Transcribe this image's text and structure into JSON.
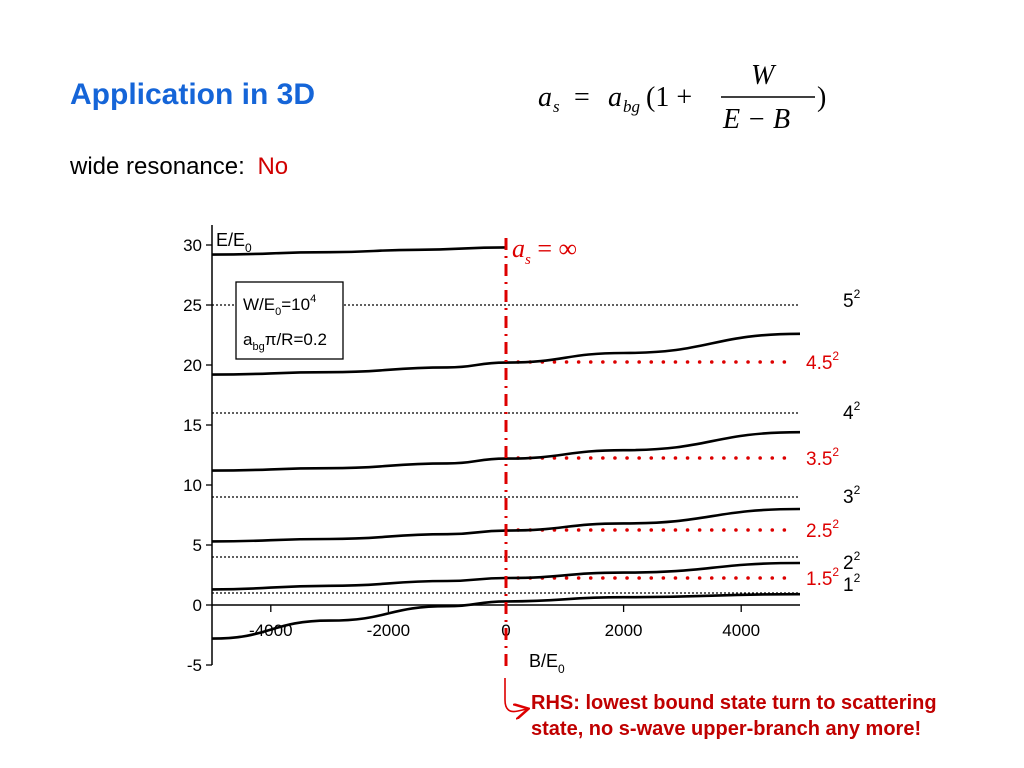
{
  "slide": {
    "title": "Application in 3D",
    "subtitle_label": "wide resonance:",
    "subtitle_value": "No",
    "note_line1": "RHS: lowest bound state turn to scattering",
    "note_line2": "state, no s-wave upper-branch any more!"
  },
  "formula": {
    "lhs": "a",
    "lhs_sub": "s",
    "eq": "=",
    "a": "a",
    "a_sub": "bg",
    "open": "(1 +",
    "num": "W",
    "den": "E − B",
    "close": ")"
  },
  "chart_data": {
    "type": "line",
    "ylabel": "E/E",
    "ylabel_sub": "0",
    "xlabel": "B/E",
    "xlabel_sub": "0",
    "xlim": [
      -5000,
      5000
    ],
    "ylim": [
      -5,
      31
    ],
    "xticks": [
      -4000,
      -2000,
      0,
      2000,
      4000
    ],
    "yticks": [
      -5,
      0,
      5,
      10,
      15,
      20,
      25,
      30
    ],
    "legend": {
      "line1": "W/E",
      "line1_sub": "0",
      "line1_rest": "=10",
      "line1_sup": "4",
      "line2": "a",
      "line2_sub": "bg",
      "line2_rest": "π/R=0.2"
    },
    "infinity_label": {
      "a": "a",
      "sub": "s",
      "rest": " = ∞"
    },
    "series": [
      {
        "points": [
          [
            -5000,
            -2.8
          ],
          [
            -3000,
            -1.3
          ],
          [
            -1000,
            -0.1
          ],
          [
            0,
            0.3
          ],
          [
            2000,
            0.65
          ],
          [
            5000,
            0.9
          ]
        ]
      },
      {
        "points": [
          [
            -5000,
            1.3
          ],
          [
            -3000,
            1.6
          ],
          [
            -1000,
            2.0
          ],
          [
            0,
            2.25
          ],
          [
            2000,
            2.7
          ],
          [
            5000,
            3.5
          ]
        ]
      },
      {
        "points": [
          [
            -5000,
            5.3
          ],
          [
            -3000,
            5.5
          ],
          [
            -1000,
            5.9
          ],
          [
            0,
            6.2
          ],
          [
            2000,
            6.8
          ],
          [
            5000,
            8.0
          ]
        ]
      },
      {
        "points": [
          [
            -5000,
            11.2
          ],
          [
            -3000,
            11.4
          ],
          [
            -1000,
            11.8
          ],
          [
            0,
            12.2
          ],
          [
            2000,
            12.9
          ],
          [
            5000,
            14.4
          ]
        ]
      },
      {
        "points": [
          [
            -5000,
            19.2
          ],
          [
            -3000,
            19.4
          ],
          [
            -1000,
            19.8
          ],
          [
            0,
            20.2
          ],
          [
            2000,
            21.0
          ],
          [
            5000,
            22.6
          ]
        ]
      },
      {
        "points": [
          [
            -5000,
            29.2
          ],
          [
            -3000,
            29.4
          ],
          [
            -1500,
            29.6
          ],
          [
            0,
            29.8
          ]
        ]
      }
    ],
    "integer_levels": [
      {
        "y": 1,
        "label": "1",
        "sup": "2"
      },
      {
        "y": 4,
        "label": "2",
        "sup": "2"
      },
      {
        "y": 9,
        "label": "3",
        "sup": "2"
      },
      {
        "y": 16,
        "label": "4",
        "sup": "2"
      },
      {
        "y": 25,
        "label": "5",
        "sup": "2"
      }
    ],
    "half_levels": [
      {
        "y": 2.25,
        "label": "1.5",
        "sup": "2"
      },
      {
        "y": 6.25,
        "label": "2.5",
        "sup": "2"
      },
      {
        "y": 12.25,
        "label": "3.5",
        "sup": "2"
      },
      {
        "y": 20.25,
        "label": "4.5",
        "sup": "2"
      }
    ]
  },
  "colors": {
    "title": "#1565d8",
    "red": "#dd0000",
    "curve": "#000000"
  }
}
